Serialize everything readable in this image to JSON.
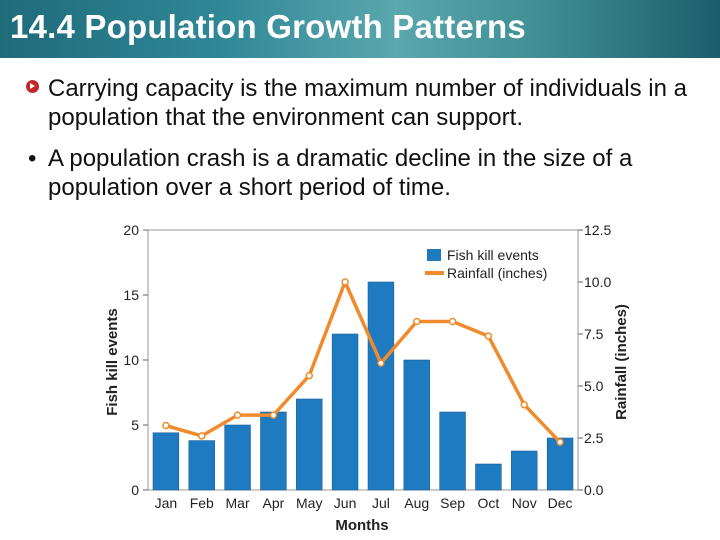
{
  "title": "14.4 Population Growth Patterns",
  "bullets": [
    {
      "text": "Carrying capacity is the maximum number of individuals in a population that the environment can support."
    },
    {
      "bullet": "•",
      "text": "A population crash is a dramatic decline in the size of a population over a short period of time."
    }
  ],
  "chart_data": {
    "type": "bar",
    "categories": [
      "Jan",
      "Feb",
      "Mar",
      "Apr",
      "May",
      "Jun",
      "Jul",
      "Aug",
      "Sep",
      "Oct",
      "Nov",
      "Dec"
    ],
    "series": [
      {
        "name": "Fish kill events",
        "type": "bar",
        "axis": "left",
        "color": "#1f7bc1",
        "values": [
          4.4,
          3.8,
          5,
          6,
          7,
          12,
          16,
          10,
          6,
          2,
          3,
          4
        ]
      },
      {
        "name": "Rainfall (inches)",
        "type": "line",
        "axis": "right",
        "color": "#ef8b2c",
        "values": [
          3.1,
          2.6,
          3.6,
          3.6,
          5.5,
          10.0,
          6.1,
          8.1,
          8.1,
          7.4,
          4.1,
          2.3
        ]
      }
    ],
    "xlabel": "Months",
    "ylabel": "Fish kill events",
    "y2label": "Rainfall (inches)",
    "ylim": [
      0,
      20
    ],
    "y2lim": [
      0,
      12.5
    ],
    "yticks": [
      "0",
      "5",
      "10",
      "15",
      "20"
    ],
    "y2ticks": [
      "0.0",
      "2.5",
      "5.0",
      "7.5",
      "10.0",
      "12.5"
    ],
    "legend_position": "top-right"
  }
}
